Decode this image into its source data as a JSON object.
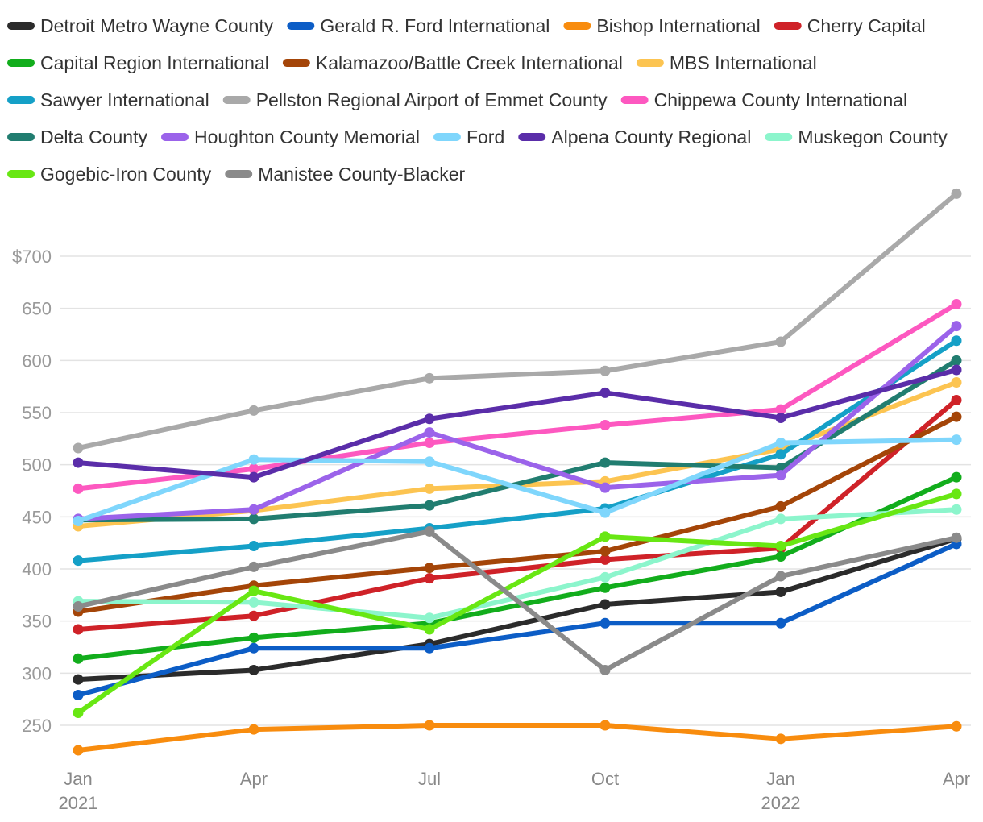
{
  "chart_data": {
    "type": "line",
    "title": "",
    "xlabel": "",
    "ylabel": "",
    "ylim": [
      215,
      765
    ],
    "y_ticks": [
      {
        "value": 250,
        "label": "250"
      },
      {
        "value": 300,
        "label": "300"
      },
      {
        "value": 350,
        "label": "350"
      },
      {
        "value": 400,
        "label": "400"
      },
      {
        "value": 450,
        "label": "450"
      },
      {
        "value": 500,
        "label": "500"
      },
      {
        "value": 550,
        "label": "550"
      },
      {
        "value": 600,
        "label": "600"
      },
      {
        "value": 650,
        "label": "650"
      },
      {
        "value": 700,
        "label": "$700"
      }
    ],
    "x_ticks": [
      {
        "month": "Jan",
        "year": "2021"
      },
      {
        "month": "Apr",
        "year": ""
      },
      {
        "month": "Jul",
        "year": ""
      },
      {
        "month": "Oct",
        "year": ""
      },
      {
        "month": "Jan",
        "year": "2022"
      },
      {
        "month": "Apr",
        "year": ""
      }
    ],
    "legend_position": "top",
    "series": [
      {
        "name": "Detroit Metro Wayne County",
        "color": "#2b2b2b",
        "values": [
          294,
          303,
          328,
          366,
          378,
          429
        ]
      },
      {
        "name": "Gerald R. Ford International",
        "color": "#0c5dc6",
        "values": [
          279,
          324,
          324,
          348,
          348,
          424
        ]
      },
      {
        "name": "Bishop International",
        "color": "#f88c0e",
        "values": [
          226,
          246,
          250,
          250,
          237,
          249
        ]
      },
      {
        "name": "Cherry Capital",
        "color": "#cf2228",
        "values": [
          342,
          355,
          391,
          409,
          420,
          562
        ]
      },
      {
        "name": "Capital Region International",
        "color": "#12ad1c",
        "values": [
          314,
          334,
          348,
          382,
          412,
          488
        ]
      },
      {
        "name": "Kalamazoo/Battle Creek International",
        "color": "#a44508",
        "values": [
          359,
          384,
          401,
          417,
          460,
          546
        ]
      },
      {
        "name": "MBS International",
        "color": "#fcc451",
        "values": [
          441,
          456,
          477,
          484,
          515,
          579
        ]
      },
      {
        "name": "Sawyer International",
        "color": "#15a0c7",
        "values": [
          408,
          422,
          439,
          458,
          510,
          619
        ]
      },
      {
        "name": "Pellston Regional Airport of Emmet County",
        "color": "#a9a9a9",
        "values": [
          516,
          552,
          583,
          590,
          618,
          760
        ]
      },
      {
        "name": "Chippewa County International",
        "color": "#fd58c0",
        "values": [
          477,
          496,
          521,
          538,
          553,
          654
        ]
      },
      {
        "name": "Delta County",
        "color": "#217d70",
        "values": [
          447,
          448,
          461,
          502,
          497,
          600
        ]
      },
      {
        "name": "Houghton County Memorial",
        "color": "#9b63ea",
        "values": [
          448,
          457,
          531,
          478,
          490,
          633
        ]
      },
      {
        "name": "Ford",
        "color": "#7fd6fc",
        "values": [
          446,
          505,
          503,
          454,
          521,
          524
        ]
      },
      {
        "name": "Alpena County Regional",
        "color": "#5a2da9",
        "values": [
          502,
          488,
          544,
          569,
          545,
          591
        ]
      },
      {
        "name": "Muskegon County",
        "color": "#8cf5cc",
        "values": [
          369,
          368,
          353,
          392,
          448,
          457
        ]
      },
      {
        "name": "Gogebic-Iron County",
        "color": "#68e713",
        "values": [
          262,
          379,
          342,
          431,
          422,
          472
        ]
      },
      {
        "name": "Manistee County-Blacker",
        "color": "#8a8a8a",
        "values": [
          364,
          402,
          436,
          303,
          393,
          430
        ]
      }
    ]
  }
}
